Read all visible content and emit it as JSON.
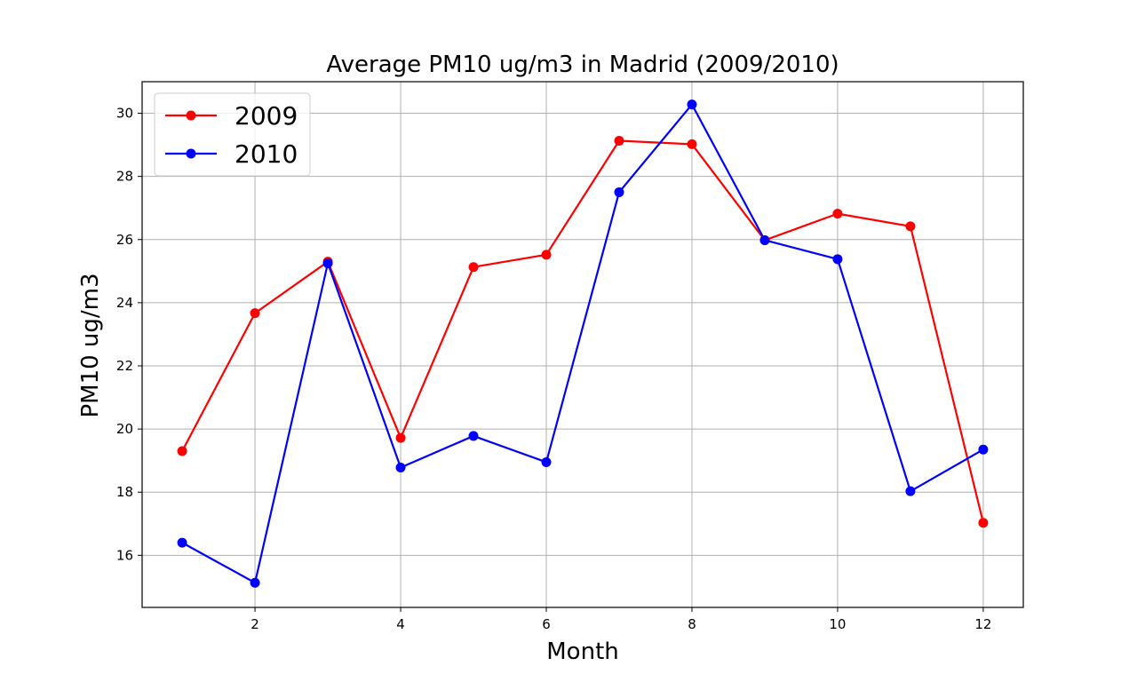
{
  "chart_data": {
    "type": "line",
    "title": "Average PM10 ug/m3 in Madrid (2009/2010)",
    "xlabel": "Month",
    "ylabel": "PM10 ug/m3",
    "x": [
      1,
      2,
      3,
      4,
      5,
      6,
      7,
      8,
      9,
      10,
      11,
      12
    ],
    "xlim": [
      0.45,
      12.55
    ],
    "ylim": [
      14.35,
      31.0
    ],
    "xticks": [
      2,
      4,
      6,
      8,
      10,
      12
    ],
    "yticks": [
      16,
      18,
      20,
      22,
      24,
      26,
      28,
      30
    ],
    "grid": true,
    "legend": "upper-left",
    "series": [
      {
        "name": "2009",
        "color": "#ff0000",
        "values": [
          19.3,
          23.67,
          25.3,
          19.72,
          25.13,
          25.52,
          29.13,
          29.02,
          25.98,
          26.82,
          26.42,
          17.03
        ]
      },
      {
        "name": "2010",
        "color": "#0000ff",
        "values": [
          16.4,
          15.13,
          25.25,
          18.78,
          19.78,
          18.95,
          27.5,
          30.28,
          25.98,
          25.38,
          18.03,
          19.35
        ]
      }
    ]
  }
}
